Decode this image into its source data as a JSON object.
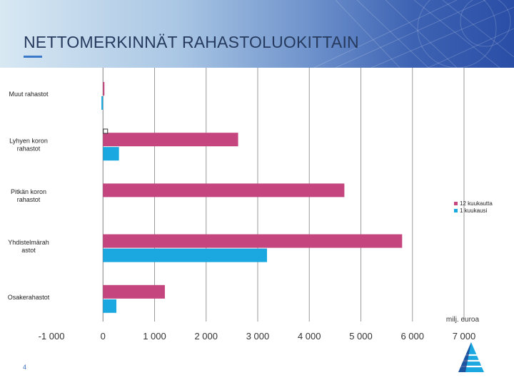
{
  "slide": {
    "title": "NETTOMERKINNÄT RAHASTOLUOKITTAIN",
    "page_number": "4"
  },
  "colors": {
    "series_12m": "#c5467e",
    "series_1m": "#1ba8e0",
    "title_text": "#263a5e",
    "header_dark": "#2a4ea6",
    "header_light": "#d8e8f3"
  },
  "chart_data": {
    "type": "bar",
    "orientation": "horizontal",
    "categories": [
      "Muut rahastot",
      "Lyhyen koron rahastot",
      "Pitkän koron rahastot",
      "Yhdistelmärahastot",
      "Osakerahastot"
    ],
    "category_label_lines": [
      [
        "Muut rahastot"
      ],
      [
        "Lyhyen koron",
        "rahastot"
      ],
      [
        "Pitkän koron",
        "rahastot"
      ],
      [
        "Yhdistelmärah",
        "astot"
      ],
      [
        "Osakerahastot"
      ]
    ],
    "series": [
      {
        "name": "12 kuukautta",
        "color": "#c5467e",
        "values": [
          20,
          2620,
          4680,
          5800,
          1200
        ]
      },
      {
        "name": "1 kuukausi",
        "color": "#1ba8e0",
        "values": [
          -30,
          310,
          0,
          3180,
          260
        ]
      }
    ],
    "xlim": [
      -1000,
      7000
    ],
    "xticks": [
      -1000,
      0,
      1000,
      2000,
      3000,
      4000,
      5000,
      6000,
      7000
    ],
    "xtick_labels": [
      "-1 000",
      "0",
      "1 000",
      "2 000",
      "3 000",
      "4 000",
      "5 000",
      "6 000",
      "7 000"
    ],
    "unit_label": "milj. euroa",
    "grid": "vertical",
    "legend_position": "right"
  }
}
